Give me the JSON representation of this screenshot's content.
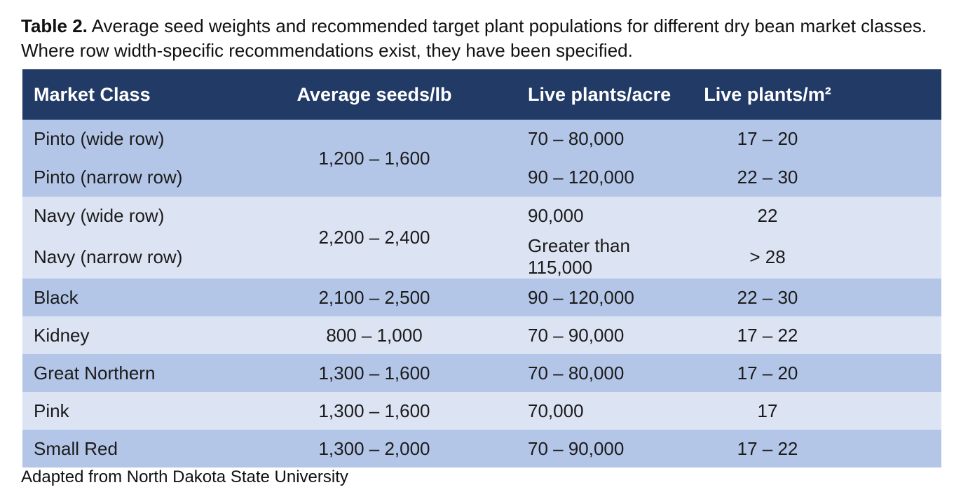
{
  "caption": {
    "label": "Table 2.",
    "text": " Average seed weights and recommended target plant populations for different dry bean market classes. Where row width-specific recommendations exist, they have been specified."
  },
  "table": {
    "headers": {
      "market_class": "Market Class",
      "seeds_lb": "Average seeds/lb",
      "plants_acre": "Live plants/acre",
      "plants_m2": "Live plants/m²"
    },
    "groups": [
      {
        "shade": "medium",
        "seeds_lb": "1,200 – 1,600",
        "rows": [
          {
            "market_class": "Pinto (wide row)",
            "plants_acre": "70 – 80,000",
            "plants_m2": "17 – 20"
          },
          {
            "market_class": "Pinto (narrow row)",
            "plants_acre": "90 – 120,000",
            "plants_m2": "22 – 30"
          }
        ]
      },
      {
        "shade": "light",
        "seeds_lb": "2,200 – 2,400",
        "rows": [
          {
            "market_class": "Navy (wide row)",
            "plants_acre": "90,000",
            "plants_m2": "22"
          },
          {
            "market_class": "Navy (narrow row)",
            "plants_acre": "Greater than 115,000",
            "plants_m2": "> 28"
          }
        ]
      },
      {
        "shade": "medium",
        "seeds_lb": "2,100 – 2,500",
        "rows": [
          {
            "market_class": "Black",
            "plants_acre": "90 – 120,000",
            "plants_m2": "22 – 30"
          }
        ]
      },
      {
        "shade": "light",
        "seeds_lb": "800 – 1,000",
        "rows": [
          {
            "market_class": "Kidney",
            "plants_acre": "70 – 90,000",
            "plants_m2": "17 – 22"
          }
        ]
      },
      {
        "shade": "medium",
        "seeds_lb": "1,300 – 1,600",
        "rows": [
          {
            "market_class": "Great Northern",
            "plants_acre": "70 – 80,000",
            "plants_m2": "17 – 20"
          }
        ]
      },
      {
        "shade": "light",
        "seeds_lb": "1,300 – 1,600",
        "rows": [
          {
            "market_class": "Pink",
            "plants_acre": "70,000",
            "plants_m2": "17"
          }
        ]
      },
      {
        "shade": "medium",
        "seeds_lb": "1,300 – 2,000",
        "rows": [
          {
            "market_class": "Small Red",
            "plants_acre": "70 – 90,000",
            "plants_m2": "17 – 22"
          }
        ]
      }
    ]
  },
  "footer": "Adapted from North Dakota State University",
  "colors": {
    "header_bg": "#213A66",
    "header_text": "#FFFFFF",
    "row_medium": "#B4C6E7",
    "row_light": "#DCE3F3",
    "body_text": "#1B1B1B",
    "page_bg": "#FFFFFF"
  }
}
